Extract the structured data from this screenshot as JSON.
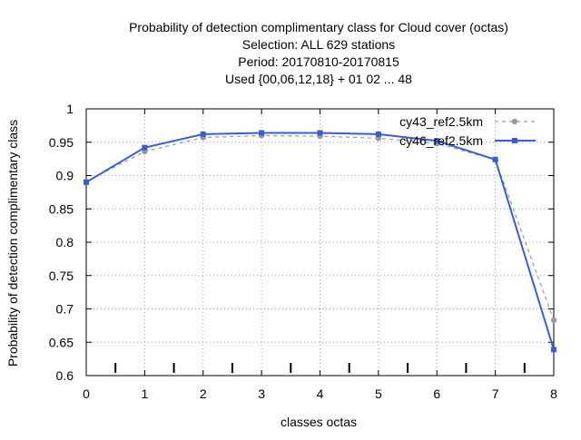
{
  "chart_data": {
    "type": "line",
    "title_lines": [
      "Probability of detection complimentary class  for Cloud cover (octas)",
      "Selection: ALL    629 stations",
      "Period: 20170810-20170815",
      "Used {00,06,12,18} + 01 02 ... 48"
    ],
    "xlabel": "classes octas",
    "ylabel": "Probability of detection complimentary class",
    "xlim": [
      0,
      8
    ],
    "ylim": [
      0.6,
      1.0
    ],
    "x_ticks": [
      0,
      1,
      2,
      3,
      4,
      5,
      6,
      7,
      8
    ],
    "y_ticks": [
      0.6,
      0.65,
      0.7,
      0.75,
      0.8,
      0.85,
      0.9,
      0.95,
      1.0
    ],
    "x_tick_labels": [
      "0",
      "1",
      "2",
      "3",
      "4",
      "5",
      "6",
      "7",
      "8"
    ],
    "y_tick_labels": [
      "0.6",
      "0.65",
      "0.7",
      "0.75",
      "0.8",
      "0.85",
      "0.9",
      "0.95",
      "1"
    ],
    "grid": true,
    "legend_position": "top-right",
    "bottom_markers_x": [
      0.5,
      1.5,
      2.5,
      3.5,
      4.5,
      5.5,
      6.5,
      7.5
    ],
    "series": [
      {
        "name": "cy43_ref2.5km",
        "color": "#999999",
        "style": "dashed",
        "x": [
          0,
          1,
          2,
          3,
          4,
          5,
          6,
          7,
          8
        ],
        "values": [
          0.891,
          0.936,
          0.957,
          0.96,
          0.959,
          0.956,
          0.948,
          0.924,
          0.683
        ]
      },
      {
        "name": "cy46_ref2.5km",
        "color": "#3a5fcd",
        "style": "solid",
        "x": [
          0,
          1,
          2,
          3,
          4,
          5,
          6,
          7,
          8
        ],
        "values": [
          0.89,
          0.942,
          0.962,
          0.964,
          0.964,
          0.962,
          0.952,
          0.924,
          0.639
        ]
      }
    ]
  }
}
